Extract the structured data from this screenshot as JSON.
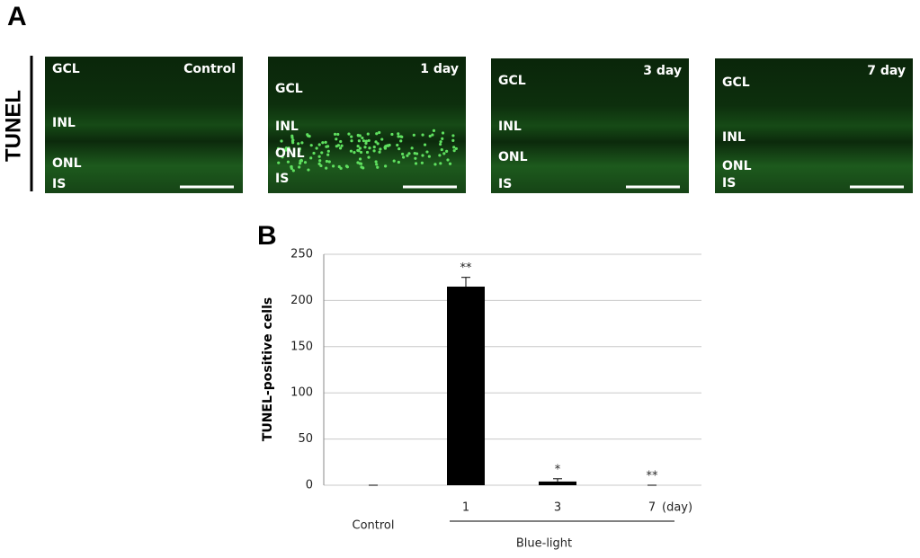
{
  "panel_a": {
    "label": "A",
    "row_label": "TUNEL",
    "images": [
      {
        "title": "Control",
        "layers": [
          "GCL",
          "INL",
          "ONL",
          "IS"
        ]
      },
      {
        "title": "1 day",
        "layers": [
          "GCL",
          "INL",
          "ONL",
          "IS"
        ]
      },
      {
        "title": "3 day",
        "layers": [
          "GCL",
          "INL",
          "ONL",
          "IS"
        ]
      },
      {
        "title": "7 day",
        "layers": [
          "GCL",
          "INL",
          "ONL",
          "IS"
        ]
      }
    ]
  },
  "chart_data": {
    "type": "bar",
    "panel_label": "B",
    "y_label": "TUNEL-positive  cells",
    "categories": [
      "Control",
      "1",
      "3",
      "7"
    ],
    "x_unit": "(day)",
    "group_label": "Blue-light",
    "values": [
      0,
      215,
      4,
      0
    ],
    "errors": [
      0,
      10,
      3,
      0
    ],
    "significance": [
      null,
      "**",
      "*",
      "**"
    ],
    "color": "#000000",
    "ylim": [
      0,
      250
    ],
    "yticks": [
      0,
      50,
      100,
      150,
      200,
      250
    ],
    "grid": true
  }
}
